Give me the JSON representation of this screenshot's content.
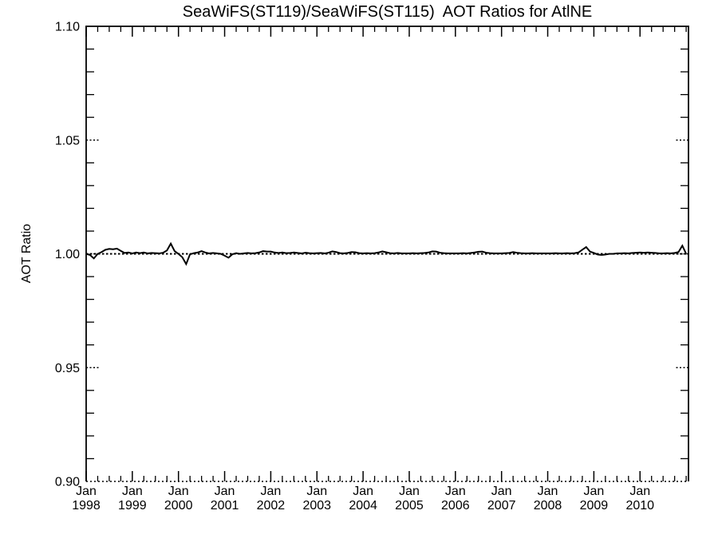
{
  "title": "SeaWiFS(ST119)/SeaWiFS(ST115)  AOT Ratios for AtlNE",
  "colors": {
    "foreground": "#000000",
    "background": "#ffffff",
    "line": "#000000"
  },
  "chart_data": {
    "type": "line",
    "title": "SeaWiFS(ST119)/SeaWiFS(ST115)  AOT Ratios for AtlNE",
    "xlabel": "",
    "ylabel": "AOT Ratio",
    "xlim": [
      1998.0,
      2011.05
    ],
    "ylim": [
      0.9,
      1.1
    ],
    "grid": "off",
    "legend": "none",
    "reference_line": 1.0,
    "y_major_ticks": [
      0.9,
      0.95,
      1.0,
      1.05,
      1.1
    ],
    "y_tick_labels": [
      "0.90",
      "0.95",
      "1.00",
      "1.05",
      "1.10"
    ],
    "y_minor_step": 0.01,
    "x_major_ticks": [
      1998,
      1999,
      2000,
      2001,
      2002,
      2003,
      2004,
      2005,
      2006,
      2007,
      2008,
      2009,
      2010
    ],
    "x_tick_labels": [
      {
        "line1": "Jan",
        "line2": "1998"
      },
      {
        "line1": "Jan",
        "line2": "1999"
      },
      {
        "line1": "Jan",
        "line2": "2000"
      },
      {
        "line1": "Jan",
        "line2": "2001"
      },
      {
        "line1": "Jan",
        "line2": "2002"
      },
      {
        "line1": "Jan",
        "line2": "2003"
      },
      {
        "line1": "Jan",
        "line2": "2004"
      },
      {
        "line1": "Jan",
        "line2": "2005"
      },
      {
        "line1": "Jan",
        "line2": "2006"
      },
      {
        "line1": "Jan",
        "line2": "2007"
      },
      {
        "line1": "Jan",
        "line2": "2008"
      },
      {
        "line1": "Jan",
        "line2": "2009"
      },
      {
        "line1": "Jan",
        "line2": "2010"
      }
    ],
    "x_minor_step": 0.25,
    "series": [
      {
        "name": "SeaWiFS(ST119)/SeaWiFS(ST115) AOT ratio",
        "x_start": 1998.0,
        "x_step": 0.0833333,
        "values": [
          1.0,
          0.9995,
          0.998,
          1.0,
          1.0008,
          1.0018,
          1.0022,
          1.002,
          1.0023,
          1.0013,
          1.0004,
          1.0006,
          1.0002,
          1.0006,
          1.0003,
          1.0006,
          1.0002,
          1.0004,
          1.0003,
          1.0002,
          1.0005,
          1.0015,
          1.0045,
          1.0012,
          1.0,
          0.9985,
          0.9955,
          0.9998,
          1.0003,
          1.0006,
          1.0012,
          1.0006,
          1.0002,
          1.0004,
          1.0002,
          1.0,
          0.9992,
          0.9983,
          0.9998,
          1.0003,
          1.0,
          1.0002,
          1.0004,
          1.0002,
          1.0003,
          1.0006,
          1.0012,
          1.001,
          1.001,
          1.0006,
          1.0004,
          1.0006,
          1.0003,
          1.0004,
          1.0006,
          1.0004,
          1.0002,
          1.0005,
          1.0003,
          1.0002,
          1.0003,
          1.0004,
          1.0002,
          1.0005,
          1.0011,
          1.0008,
          1.0003,
          1.0002,
          1.0004,
          1.0008,
          1.0007,
          1.0003,
          1.0002,
          1.0003,
          1.0002,
          1.0003,
          1.0006,
          1.0011,
          1.0007,
          1.0003,
          1.0002,
          1.0004,
          1.0002,
          1.0002,
          1.0002,
          1.0003,
          1.0002,
          1.0003,
          1.0004,
          1.0006,
          1.0011,
          1.001,
          1.0005,
          1.0003,
          1.0002,
          1.0002,
          1.0002,
          1.0002,
          1.0003,
          1.0002,
          1.0004,
          1.0006,
          1.0009,
          1.001,
          1.0005,
          1.0003,
          1.0002,
          1.0002,
          1.0002,
          1.0003,
          1.0004,
          1.0008,
          1.0005,
          1.0003,
          1.0002,
          1.0002,
          1.0003,
          1.0002,
          1.0002,
          1.0002,
          1.0002,
          1.0002,
          1.0003,
          1.0002,
          1.0002,
          1.0003,
          1.0002,
          1.0003,
          1.0006,
          1.0018,
          1.003,
          1.001,
          1.0004,
          0.9997,
          0.9995,
          0.9997,
          1.0,
          1.0,
          1.0002,
          1.0002,
          1.0003,
          1.0002,
          1.0004,
          1.0005,
          1.0006,
          1.0005,
          1.0006,
          1.0005,
          1.0004,
          1.0002,
          1.0002,
          1.0003,
          1.0002,
          1.0004,
          1.0008,
          1.0036,
          1.0
        ]
      }
    ]
  }
}
